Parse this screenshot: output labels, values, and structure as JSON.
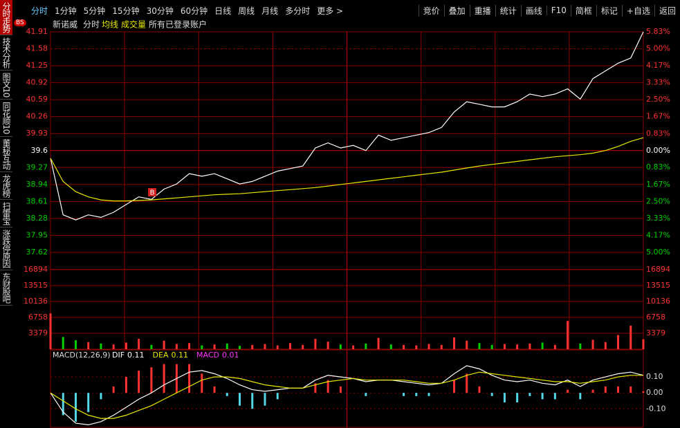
{
  "toolbar": {
    "left": [
      "分时",
      "1分钟",
      "5分钟",
      "15分钟",
      "30分钟",
      "60分钟",
      "日线",
      "周线",
      "月线",
      "多分时",
      "更多 >"
    ],
    "right": [
      "竞价",
      "叠加",
      "重播",
      "统计",
      "画线",
      "F10",
      "简框",
      "标记",
      "+自选",
      "返回"
    ]
  },
  "sidebar": [
    "分时走势",
    "技术分析",
    "图文10",
    "同花顺10",
    "董秘互动",
    "龙虎榜",
    "扫雷宝",
    "涨跌停原因",
    "东财股吧"
  ],
  "badge": "BS",
  "chart_data": [
    {
      "type": "line",
      "title": "新诺威",
      "subtitle": "所有已登录账户",
      "annotation": "B",
      "up_color": "#ff3232",
      "down_color": "#00d000",
      "grid": true,
      "ylim": [
        37.29,
        41.91
      ],
      "yticks": [
        41.91,
        41.58,
        41.25,
        40.92,
        40.59,
        40.26,
        39.93,
        39.6,
        39.27,
        38.94,
        38.61,
        38.28,
        37.95,
        37.62
      ],
      "y2lim": [
        -5.83,
        5.83
      ],
      "y2ticks": [
        {
          "value": 5.83,
          "label": "5.83%"
        },
        {
          "value": 5,
          "label": "5.00%"
        },
        {
          "value": 4.17,
          "label": "4.17%"
        },
        {
          "value": 3.33,
          "label": "3.33%"
        },
        {
          "value": 2.5,
          "label": "2.50%"
        },
        {
          "value": 1.67,
          "label": "1.67%"
        },
        {
          "value": 0.83,
          "label": "0.83%"
        },
        {
          "value": 0,
          "label": "0.00%"
        },
        {
          "value": -0.83,
          "label": "0.83%"
        },
        {
          "value": -1.67,
          "label": "1.67%"
        },
        {
          "value": -2.5,
          "label": "2.50%"
        },
        {
          "value": -3.33,
          "label": "3.33%"
        },
        {
          "value": -4.17,
          "label": "4.17%"
        },
        {
          "value": -5,
          "label": "5.00%"
        }
      ],
      "series": [
        {
          "name": "分时",
          "color": "#ffffff",
          "values": [
            39.45,
            38.35,
            38.25,
            38.35,
            38.3,
            38.4,
            38.55,
            38.7,
            38.65,
            38.85,
            38.95,
            39.15,
            39.1,
            39.15,
            39.05,
            38.95,
            39.0,
            39.1,
            39.2,
            39.25,
            39.3,
            39.65,
            39.75,
            39.65,
            39.7,
            39.6,
            39.9,
            39.8,
            39.85,
            39.9,
            39.95,
            40.05,
            40.35,
            40.55,
            40.5,
            40.45,
            40.45,
            40.55,
            40.7,
            40.65,
            40.7,
            40.8,
            40.6,
            41.0,
            41.15,
            41.3,
            41.4,
            41.91
          ]
        },
        {
          "name": "均线",
          "color": "#e8e800",
          "values": [
            39.45,
            39.0,
            38.8,
            38.7,
            38.64,
            38.62,
            38.62,
            38.63,
            38.64,
            38.66,
            38.68,
            38.7,
            38.72,
            38.74,
            38.75,
            38.76,
            38.78,
            38.8,
            38.82,
            38.84,
            38.86,
            38.88,
            38.91,
            38.94,
            38.97,
            39.0,
            39.03,
            39.06,
            39.09,
            39.12,
            39.15,
            39.18,
            39.22,
            39.26,
            39.3,
            39.33,
            39.36,
            39.39,
            39.42,
            39.45,
            39.48,
            39.5,
            39.52,
            39.55,
            39.6,
            39.68,
            39.78,
            39.85
          ]
        }
      ]
    },
    {
      "type": "bar",
      "title": "成交量",
      "color": "#e8e800",
      "up_color": "#ff3232",
      "down_color": "#00d000",
      "ylim": [
        0,
        16894
      ],
      "yticks": [
        16894,
        13515,
        10136,
        6758,
        3379
      ],
      "values": [
        7600,
        2600,
        1900,
        1500,
        1200,
        1000,
        1400,
        2200,
        900,
        1800,
        1100,
        1300,
        800,
        1000,
        1200,
        700,
        900,
        1100,
        800,
        1300,
        900,
        2200,
        1600,
        1000,
        800,
        1200,
        2400,
        1000,
        900,
        800,
        1100,
        900,
        2500,
        1800,
        1300,
        900,
        1100,
        1000,
        1200,
        1400,
        900,
        6000,
        1200,
        2000,
        1500,
        3000,
        5000,
        2100
      ]
    },
    {
      "type": "macd",
      "title": "MACD(12,26,9)",
      "up_color": "#ff3232",
      "down_color": "#54d8e8",
      "ylim": [
        -0.22,
        0.2
      ],
      "yticks": [
        {
          "value": 0.1,
          "label": "0.10"
        },
        {
          "value": 0,
          "label": "0.00"
        },
        {
          "value": -0.1,
          "label": "-0.10"
        }
      ],
      "series": [
        {
          "name": "DIF",
          "color": "#ffffff",
          "values": [
            0,
            -0.12,
            -0.19,
            -0.2,
            -0.18,
            -0.14,
            -0.09,
            -0.04,
            0.0,
            0.05,
            0.09,
            0.13,
            0.14,
            0.12,
            0.09,
            0.05,
            0.02,
            0.01,
            0.02,
            0.03,
            0.03,
            0.08,
            0.11,
            0.1,
            0.09,
            0.07,
            0.08,
            0.08,
            0.07,
            0.06,
            0.05,
            0.06,
            0.12,
            0.17,
            0.15,
            0.11,
            0.08,
            0.07,
            0.08,
            0.06,
            0.05,
            0.08,
            0.04,
            0.08,
            0.1,
            0.12,
            0.13,
            0.11
          ]
        },
        {
          "name": "DEA",
          "color": "#e8e800",
          "values": [
            0,
            -0.05,
            -0.1,
            -0.14,
            -0.16,
            -0.16,
            -0.14,
            -0.11,
            -0.08,
            -0.04,
            0.0,
            0.04,
            0.08,
            0.1,
            0.1,
            0.09,
            0.07,
            0.05,
            0.04,
            0.03,
            0.03,
            0.05,
            0.07,
            0.08,
            0.09,
            0.08,
            0.08,
            0.08,
            0.08,
            0.07,
            0.06,
            0.06,
            0.08,
            0.11,
            0.13,
            0.12,
            0.11,
            0.1,
            0.09,
            0.08,
            0.07,
            0.07,
            0.06,
            0.07,
            0.08,
            0.1,
            0.11,
            0.11
          ]
        },
        {
          "name": "MACD",
          "color": "#ff33ff",
          "values": [
            0,
            -0.14,
            -0.18,
            -0.12,
            -0.04,
            0.04,
            0.1,
            0.14,
            0.16,
            0.18,
            0.18,
            0.18,
            0.12,
            0.04,
            -0.02,
            -0.08,
            -0.1,
            -0.08,
            -0.04,
            0,
            0,
            0.06,
            0.08,
            0.04,
            0,
            -0.02,
            0,
            0,
            -0.02,
            -0.02,
            -0.02,
            0,
            0.08,
            0.12,
            0.04,
            -0.02,
            -0.06,
            -0.06,
            -0.02,
            -0.04,
            -0.04,
            0.02,
            -0.04,
            0.02,
            0.04,
            0.04,
            0.04,
            0.01
          ]
        }
      ]
    }
  ]
}
